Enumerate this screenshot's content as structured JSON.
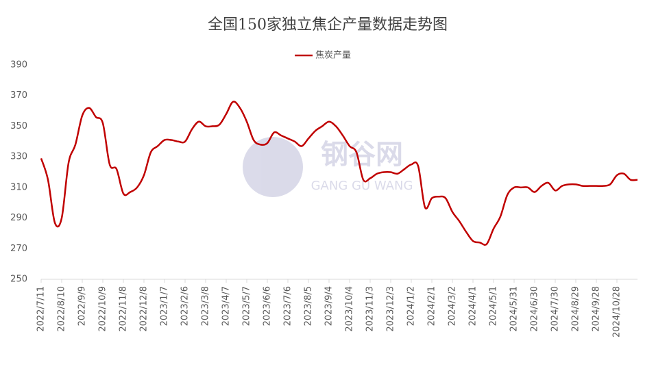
{
  "chart_data": {
    "type": "line",
    "title": "全国150家独立焦企产量数据走势图",
    "watermark": {
      "cn": "钢谷网",
      "en": "GANG GU WANG"
    },
    "categories": [
      "2022/7/11",
      null,
      null,
      "2022/8/10",
      null,
      null,
      "2022/9/9",
      null,
      null,
      "2022/10/9",
      null,
      null,
      "2022/11/8",
      null,
      null,
      "2022/12/8",
      null,
      null,
      "2023/1/7",
      null,
      null,
      "2023/2/6",
      null,
      null,
      "2023/3/8",
      null,
      null,
      "2023/4/7",
      null,
      null,
      "2023/5/7",
      null,
      null,
      "2023/6/6",
      null,
      null,
      "2023/7/6",
      null,
      null,
      "2023/8/5",
      null,
      null,
      "2023/9/4",
      null,
      null,
      "2023/10/4",
      null,
      null,
      "2023/11/3",
      null,
      null,
      "2023/12/3",
      null,
      null,
      "2024/1/2",
      null,
      null,
      "2024/2/1",
      null,
      null,
      "2024/3/2",
      null,
      null,
      "2024/4/1",
      null,
      null,
      "2024/5/1",
      null,
      null,
      "2024/5/31",
      null,
      null,
      "2024/6/30",
      null,
      null,
      "2024/7/30",
      null,
      null,
      "2024/8/29",
      null,
      null,
      "2024/9/28",
      null,
      null,
      "2024/10/28",
      null,
      null,
      null
    ],
    "series": [
      {
        "name": "焦炭产量",
        "color": "#c00000",
        "values": [
          329,
          315,
          287,
          290,
          326,
          338,
          357,
          362,
          356,
          352,
          325,
          322,
          306,
          307,
          310,
          318,
          333,
          337,
          341,
          341,
          340,
          340,
          348,
          353,
          350,
          350,
          351,
          358,
          366,
          362,
          353,
          341,
          338,
          339,
          346,
          344,
          342,
          340,
          337,
          342,
          347,
          350,
          353,
          350,
          344,
          337,
          333,
          315,
          316,
          319,
          320,
          320,
          319,
          322,
          325,
          324,
          297,
          303,
          304,
          303,
          294,
          288,
          281,
          275,
          274,
          273,
          283,
          291,
          305,
          310,
          310,
          310,
          307,
          311,
          313,
          308,
          311,
          312,
          312,
          311,
          311,
          311,
          311,
          312,
          318,
          319,
          315,
          315
        ]
      }
    ],
    "ylim": [
      250,
      390
    ],
    "yticks": [
      250,
      270,
      290,
      310,
      330,
      350,
      370,
      390
    ],
    "legend": "top"
  }
}
